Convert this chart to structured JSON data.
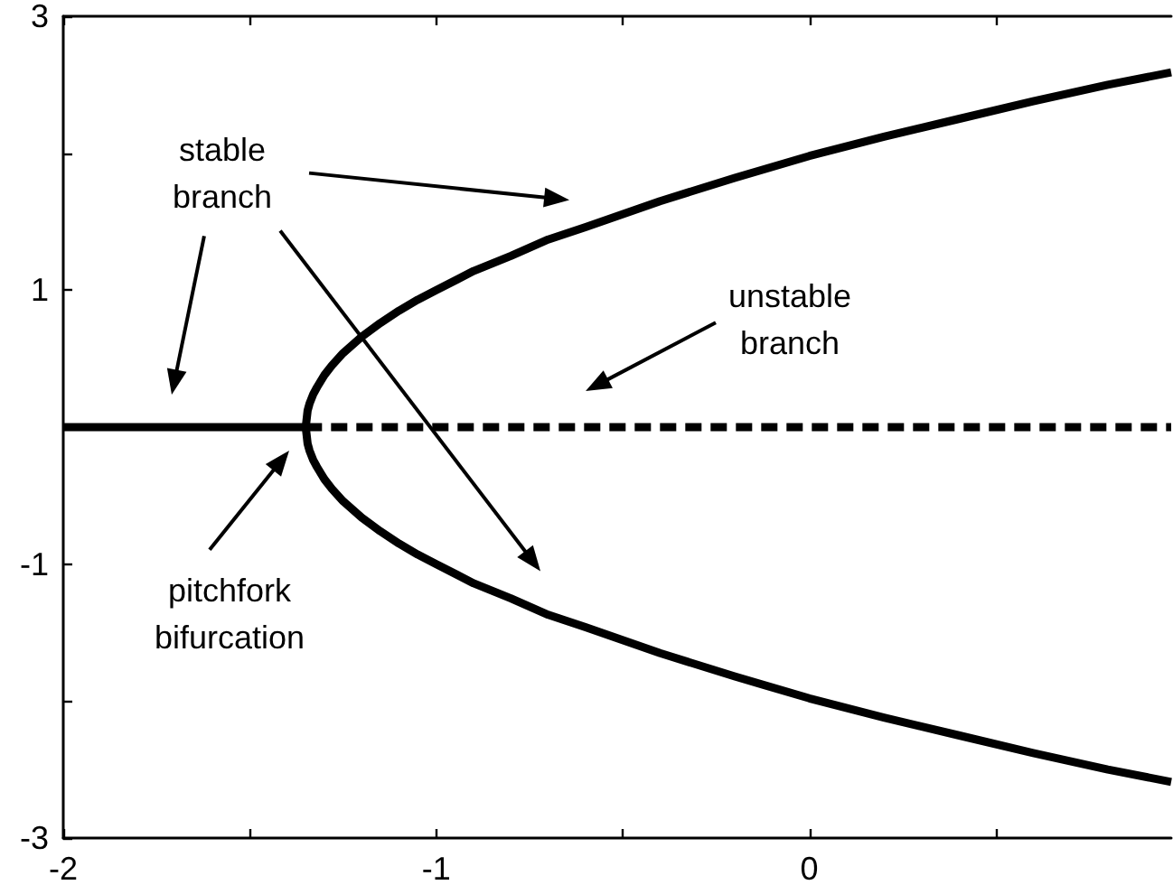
{
  "chart_data": {
    "type": "line",
    "xlim": [
      -2,
      0.97
    ],
    "ylim": [
      -3,
      3
    ],
    "xticks": [
      -2,
      {
        "value": -1.5,
        "label": null
      },
      -1,
      {
        "value": -0.5,
        "label": null
      },
      0,
      {
        "value": 0.5,
        "label": null
      }
    ],
    "yticks": [
      -3,
      {
        "value": -2,
        "label": null
      },
      -1,
      {
        "value": 0,
        "label": null
      },
      1,
      {
        "value": 2,
        "label": null
      },
      3
    ],
    "grid": false,
    "marker": "none",
    "line_style": "solid",
    "series": [
      {
        "color": "#000000",
        "x": [
          -2,
          -1.35
        ],
        "values": [
          0,
          0
        ]
      },
      {
        "color": "#000000",
        "line_style": "dashed",
        "x": [
          -1.35,
          0.97
        ],
        "values": [
          0,
          0
        ]
      },
      {
        "color": "#000000",
        "x": [
          0.97,
          0.8,
          0.6,
          0.4,
          0.2,
          0,
          -0.2,
          -0.4,
          -0.6,
          -0.7,
          -0.8,
          -0.9,
          -1.0,
          -1.05,
          -1.1,
          -1.15,
          -1.2,
          -1.25,
          -1.28,
          -1.3,
          -1.32,
          -1.33,
          -1.34,
          -1.345,
          -1.35,
          -1.345,
          -1.34,
          -1.33,
          -1.32,
          -1.3,
          -1.28,
          -1.25,
          -1.2,
          -1.15,
          -1.1,
          -1.05,
          -1.0,
          -0.9,
          -0.8,
          -0.7,
          -0.6,
          -0.4,
          -0.2,
          0,
          0.2,
          0.4,
          0.6,
          0.8,
          0.97
        ],
        "values": [
          -2.59,
          -2.5,
          -2.38,
          -2.25,
          -2.12,
          -1.98,
          -1.82,
          -1.65,
          -1.46,
          -1.37,
          -1.25,
          -1.14,
          -1.0,
          -0.93,
          -0.85,
          -0.76,
          -0.66,
          -0.54,
          -0.45,
          -0.38,
          -0.29,
          -0.24,
          -0.17,
          -0.12,
          0,
          0.12,
          0.17,
          0.24,
          0.29,
          0.38,
          0.45,
          0.54,
          0.66,
          0.76,
          0.85,
          0.93,
          1.0,
          1.14,
          1.25,
          1.37,
          1.46,
          1.65,
          1.82,
          1.98,
          2.12,
          2.25,
          2.38,
          2.5,
          2.59
        ]
      }
    ],
    "annotations": [
      "stable branch",
      "unstable branch",
      "pitchfork bifurcation"
    ]
  }
}
